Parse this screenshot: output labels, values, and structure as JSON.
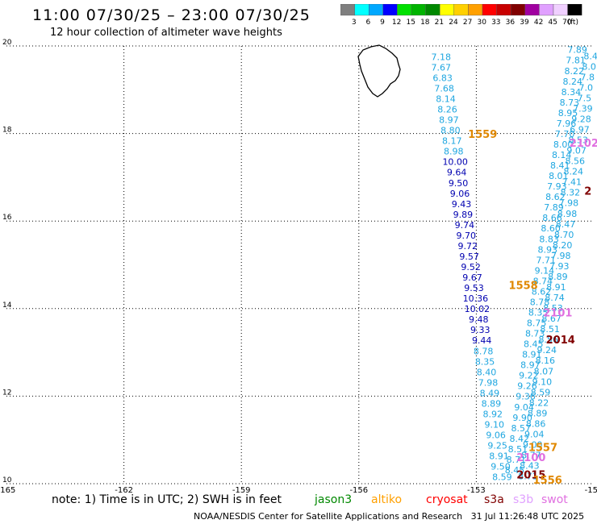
{
  "header": {
    "title": "11:00 07/30/25 – 23:00 07/30/25",
    "subtitle": "12 hour collection of altimeter wave heights"
  },
  "colorbar": {
    "unit": "(ft)",
    "bins": [
      {
        "label": "3",
        "color": "#7f7f7f"
      },
      {
        "label": "6",
        "color": "#00ffff"
      },
      {
        "label": "9",
        "color": "#00a8ff"
      },
      {
        "label": "12",
        "color": "#0000ff"
      },
      {
        "label": "15",
        "color": "#00e000"
      },
      {
        "label": "18",
        "color": "#00b400"
      },
      {
        "label": "21",
        "color": "#008800"
      },
      {
        "label": "24",
        "color": "#ffff00"
      },
      {
        "label": "27",
        "color": "#ffd000"
      },
      {
        "label": "30",
        "color": "#ffa000"
      },
      {
        "label": "33",
        "color": "#ff0000"
      },
      {
        "label": "36",
        "color": "#c80000"
      },
      {
        "label": "39",
        "color": "#800000"
      },
      {
        "label": "42",
        "color": "#a000a0"
      },
      {
        "label": "45",
        "color": "#e0a0ff"
      },
      {
        "label": "70",
        "color": "#f0d0ff"
      },
      {
        "label": "",
        "color": "#000000"
      }
    ]
  },
  "chart_data": {
    "type": "scatter",
    "title": "12 hour collection of altimeter wave heights",
    "xlim": [
      -165,
      -150
    ],
    "ylim": [
      10,
      20
    ],
    "xticks": [
      "-165",
      "-162",
      "-159",
      "-156",
      "-153",
      "-150"
    ],
    "yticks": [
      "10",
      "12",
      "14",
      "16",
      "18",
      "20"
    ],
    "grid": true,
    "annotations": [
      {
        "text": "1559",
        "lon": -152.84,
        "lat": 17.9,
        "color": "#e08800"
      },
      {
        "text": "1558",
        "lon": -151.8,
        "lat": 14.45,
        "color": "#e08800"
      },
      {
        "text": "2101",
        "lon": -150.92,
        "lat": 13.82,
        "color": "#e070e0"
      },
      {
        "text": "2014",
        "lon": -150.85,
        "lat": 13.2,
        "color": "#800000"
      },
      {
        "text": "1557",
        "lon": -151.3,
        "lat": 10.75,
        "color": "#e08800"
      },
      {
        "text": "2100",
        "lon": -151.6,
        "lat": 10.52,
        "color": "#e070e0"
      },
      {
        "text": "2015",
        "lon": -151.6,
        "lat": 10.12,
        "color": "#800000"
      },
      {
        "text": "1556",
        "lon": -151.18,
        "lat": 10.0,
        "color": "#e08800"
      },
      {
        "text": "2102",
        "lon": -150.25,
        "lat": 17.7,
        "color": "#e070e0"
      },
      {
        "text": "2",
        "lon": -150.15,
        "lat": 16.6,
        "color": "#800000"
      }
    ],
    "series": [
      {
        "name": "",
        "color": "#1ea6e0",
        "points": [
          {
            "lon": -153.9,
            "lat": 19.68,
            "value": "7.18"
          },
          {
            "lon": -153.9,
            "lat": 19.44,
            "value": "7.67"
          },
          {
            "lon": -153.86,
            "lat": 19.2,
            "value": "6.83"
          },
          {
            "lon": -153.82,
            "lat": 18.96,
            "value": "7.68"
          },
          {
            "lon": -153.78,
            "lat": 18.72,
            "value": "8.14"
          },
          {
            "lon": -153.74,
            "lat": 18.48,
            "value": "8.26"
          },
          {
            "lon": -153.7,
            "lat": 18.24,
            "value": "8.97"
          },
          {
            "lon": -153.66,
            "lat": 18.0,
            "value": "8.80"
          },
          {
            "lon": -153.62,
            "lat": 17.76,
            "value": "8.17"
          },
          {
            "lon": -153.58,
            "lat": 17.52,
            "value": "8.98"
          }
        ]
      },
      {
        "name": "",
        "color": "#0000b0",
        "points": [
          {
            "lon": -153.54,
            "lat": 17.28,
            "value": "10.00"
          },
          {
            "lon": -153.5,
            "lat": 17.04,
            "value": "9.64"
          },
          {
            "lon": -153.46,
            "lat": 16.8,
            "value": "9.50"
          },
          {
            "lon": -153.42,
            "lat": 16.56,
            "value": "9.06"
          },
          {
            "lon": -153.38,
            "lat": 16.32,
            "value": "9.43"
          },
          {
            "lon": -153.34,
            "lat": 16.08,
            "value": "9.89"
          },
          {
            "lon": -153.3,
            "lat": 15.84,
            "value": "9.74"
          },
          {
            "lon": -153.26,
            "lat": 15.6,
            "value": "9.70"
          },
          {
            "lon": -153.22,
            "lat": 15.36,
            "value": "9.72"
          },
          {
            "lon": -153.18,
            "lat": 15.12,
            "value": "9.57"
          },
          {
            "lon": -153.14,
            "lat": 14.88,
            "value": "9.52"
          },
          {
            "lon": -153.1,
            "lat": 14.64,
            "value": "9.67"
          },
          {
            "lon": -153.06,
            "lat": 14.4,
            "value": "9.53"
          },
          {
            "lon": -153.02,
            "lat": 14.16,
            "value": "10.36"
          },
          {
            "lon": -152.98,
            "lat": 13.92,
            "value": "10.02"
          },
          {
            "lon": -152.94,
            "lat": 13.68,
            "value": "9.48"
          },
          {
            "lon": -152.9,
            "lat": 13.44,
            "value": "9.33"
          },
          {
            "lon": -152.86,
            "lat": 13.2,
            "value": "9.44"
          }
        ]
      },
      {
        "name": "",
        "color": "#1ea6e0",
        "points": [
          {
            "lon": -152.82,
            "lat": 12.96,
            "value": "8.78"
          },
          {
            "lon": -152.78,
            "lat": 12.72,
            "value": "8.35"
          },
          {
            "lon": -152.74,
            "lat": 12.48,
            "value": "8.40"
          },
          {
            "lon": -152.7,
            "lat": 12.24,
            "value": "7.98"
          },
          {
            "lon": -152.66,
            "lat": 12.0,
            "value": "8.49"
          },
          {
            "lon": -152.62,
            "lat": 11.76,
            "value": "8.89"
          },
          {
            "lon": -152.58,
            "lat": 11.52,
            "value": "8.92"
          },
          {
            "lon": -152.54,
            "lat": 11.28,
            "value": "9.10"
          },
          {
            "lon": -152.5,
            "lat": 11.04,
            "value": "9.06"
          },
          {
            "lon": -152.46,
            "lat": 10.8,
            "value": "9.25"
          },
          {
            "lon": -152.42,
            "lat": 10.56,
            "value": "8.91"
          },
          {
            "lon": -152.38,
            "lat": 10.32,
            "value": "9.50"
          },
          {
            "lon": -152.34,
            "lat": 10.08,
            "value": "8.59"
          }
        ]
      },
      {
        "name": "",
        "color": "#1ea6e0",
        "points": [
          {
            "lon": -150.42,
            "lat": 19.84,
            "value": "7.89"
          },
          {
            "lon": -150.46,
            "lat": 19.6,
            "value": "7.81"
          },
          {
            "lon": -150.5,
            "lat": 19.36,
            "value": "8.22"
          },
          {
            "lon": -150.54,
            "lat": 19.12,
            "value": "8.24"
          },
          {
            "lon": -150.58,
            "lat": 18.88,
            "value": "8.34"
          },
          {
            "lon": -150.62,
            "lat": 18.64,
            "value": "8.73"
          },
          {
            "lon": -150.66,
            "lat": 18.4,
            "value": "8.95"
          },
          {
            "lon": -150.7,
            "lat": 18.16,
            "value": "7.96"
          },
          {
            "lon": -150.74,
            "lat": 17.92,
            "value": "7.70"
          },
          {
            "lon": -150.78,
            "lat": 17.68,
            "value": "8.00"
          },
          {
            "lon": -150.82,
            "lat": 17.44,
            "value": "8.14"
          },
          {
            "lon": -150.86,
            "lat": 17.2,
            "value": "8.41"
          },
          {
            "lon": -150.9,
            "lat": 16.96,
            "value": "8.01"
          },
          {
            "lon": -150.94,
            "lat": 16.72,
            "value": "7.93"
          },
          {
            "lon": -150.98,
            "lat": 16.48,
            "value": "8.62"
          },
          {
            "lon": -151.02,
            "lat": 16.24,
            "value": "7.89"
          },
          {
            "lon": -151.06,
            "lat": 16.0,
            "value": "8.66"
          },
          {
            "lon": -151.1,
            "lat": 15.76,
            "value": "8.60"
          },
          {
            "lon": -151.14,
            "lat": 15.52,
            "value": "8.83"
          },
          {
            "lon": -151.18,
            "lat": 15.28,
            "value": "8.93"
          },
          {
            "lon": -151.22,
            "lat": 15.04,
            "value": "7.71"
          },
          {
            "lon": -151.26,
            "lat": 14.8,
            "value": "9.14"
          },
          {
            "lon": -151.3,
            "lat": 14.56,
            "value": "8.74"
          },
          {
            "lon": -151.34,
            "lat": 14.32,
            "value": "8.62"
          },
          {
            "lon": -151.38,
            "lat": 14.08,
            "value": "8.78"
          },
          {
            "lon": -151.42,
            "lat": 13.84,
            "value": "8.35"
          },
          {
            "lon": -151.46,
            "lat": 13.6,
            "value": "8.75"
          },
          {
            "lon": -151.5,
            "lat": 13.36,
            "value": "8.73"
          },
          {
            "lon": -151.54,
            "lat": 13.12,
            "value": "8.45"
          },
          {
            "lon": -151.58,
            "lat": 12.88,
            "value": "8.91"
          },
          {
            "lon": -151.62,
            "lat": 12.64,
            "value": "8.97"
          },
          {
            "lon": -151.66,
            "lat": 12.4,
            "value": "9.22"
          },
          {
            "lon": -151.7,
            "lat": 12.16,
            "value": "9.26"
          },
          {
            "lon": -151.74,
            "lat": 11.92,
            "value": "9.36"
          },
          {
            "lon": -151.78,
            "lat": 11.68,
            "value": "9.04"
          },
          {
            "lon": -151.82,
            "lat": 11.44,
            "value": "9.90"
          },
          {
            "lon": -151.86,
            "lat": 11.2,
            "value": "8.57"
          },
          {
            "lon": -151.9,
            "lat": 10.96,
            "value": "8.42"
          },
          {
            "lon": -151.94,
            "lat": 10.72,
            "value": "8.51"
          },
          {
            "lon": -151.98,
            "lat": 10.48,
            "value": "8.71"
          },
          {
            "lon": -152.02,
            "lat": 10.24,
            "value": "8.45"
          }
        ]
      },
      {
        "name": "",
        "color": "#1ea6e0",
        "points": [
          {
            "lon": -150.08,
            "lat": 19.7,
            "value": "8.4"
          },
          {
            "lon": -150.12,
            "lat": 19.46,
            "value": "8.0"
          },
          {
            "lon": -150.16,
            "lat": 19.22,
            "value": "7.8"
          },
          {
            "lon": -150.2,
            "lat": 18.98,
            "value": "7.0"
          },
          {
            "lon": -150.24,
            "lat": 18.74,
            "value": "7.5"
          },
          {
            "lon": -150.28,
            "lat": 18.5,
            "value": "7.39"
          },
          {
            "lon": -150.32,
            "lat": 18.26,
            "value": "9.28"
          },
          {
            "lon": -150.36,
            "lat": 18.02,
            "value": "6.97"
          },
          {
            "lon": -150.4,
            "lat": 17.78,
            "value": "8.53"
          },
          {
            "lon": -150.44,
            "lat": 17.54,
            "value": "9.07"
          },
          {
            "lon": -150.48,
            "lat": 17.3,
            "value": "8.56"
          },
          {
            "lon": -150.52,
            "lat": 17.06,
            "value": "8.24"
          },
          {
            "lon": -150.56,
            "lat": 16.82,
            "value": "7.41"
          },
          {
            "lon": -150.6,
            "lat": 16.58,
            "value": "8.32"
          },
          {
            "lon": -150.64,
            "lat": 16.34,
            "value": "7.98"
          },
          {
            "lon": -150.68,
            "lat": 16.1,
            "value": "8.98"
          },
          {
            "lon": -150.72,
            "lat": 15.86,
            "value": "8.47"
          },
          {
            "lon": -150.76,
            "lat": 15.62,
            "value": "8.70"
          },
          {
            "lon": -150.8,
            "lat": 15.38,
            "value": "8.20"
          },
          {
            "lon": -150.84,
            "lat": 15.14,
            "value": "7.98"
          },
          {
            "lon": -150.88,
            "lat": 14.9,
            "value": "7.93"
          },
          {
            "lon": -150.92,
            "lat": 14.66,
            "value": "8.89"
          },
          {
            "lon": -150.96,
            "lat": 14.42,
            "value": "8.91"
          },
          {
            "lon": -151.0,
            "lat": 14.18,
            "value": "8.74"
          },
          {
            "lon": -151.04,
            "lat": 13.94,
            "value": "8.53"
          },
          {
            "lon": -151.08,
            "lat": 13.7,
            "value": "8.67"
          },
          {
            "lon": -151.12,
            "lat": 13.46,
            "value": "8.51"
          },
          {
            "lon": -151.16,
            "lat": 13.22,
            "value": "8.56"
          },
          {
            "lon": -151.2,
            "lat": 12.98,
            "value": "9.24"
          },
          {
            "lon": -151.24,
            "lat": 12.74,
            "value": "8.16"
          },
          {
            "lon": -151.28,
            "lat": 12.5,
            "value": "8.07"
          },
          {
            "lon": -151.32,
            "lat": 12.26,
            "value": "9.10"
          },
          {
            "lon": -151.36,
            "lat": 12.02,
            "value": "8.59"
          },
          {
            "lon": -151.4,
            "lat": 11.78,
            "value": "8.22"
          },
          {
            "lon": -151.44,
            "lat": 11.54,
            "value": "8.89"
          },
          {
            "lon": -151.48,
            "lat": 11.3,
            "value": "8.86"
          },
          {
            "lon": -151.52,
            "lat": 11.06,
            "value": "9.04"
          },
          {
            "lon": -151.56,
            "lat": 10.82,
            "value": "9.00"
          },
          {
            "lon": -151.6,
            "lat": 10.58,
            "value": "8.77"
          },
          {
            "lon": -151.64,
            "lat": 10.34,
            "value": "8.43"
          },
          {
            "lon": -151.68,
            "lat": 10.1,
            "value": "8.71"
          }
        ]
      }
    ]
  },
  "footer": {
    "note": "note: 1) Time is in UTC; 2) SWH is in feet",
    "satellites": [
      {
        "label": "jason3",
        "color": "#008800"
      },
      {
        "label": "altiko",
        "color": "#ffa000"
      },
      {
        "label": "cryosat",
        "color": "#ff0000"
      },
      {
        "label": "s3a",
        "color": "#800000"
      },
      {
        "label": "s3b",
        "color": "#e0a0ff"
      },
      {
        "label": "swot",
        "color": "#e070e0"
      }
    ],
    "credit": "NOAA/NESDIS Center for Satellite Applications and Research",
    "timestamp": "31 Jul 11:26:48 UTC 2025"
  }
}
